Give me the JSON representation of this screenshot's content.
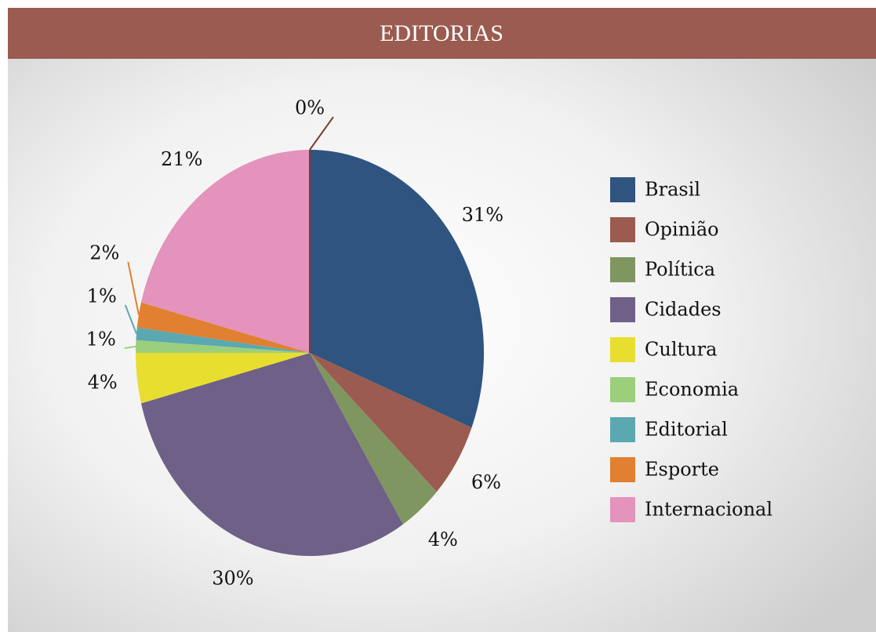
{
  "chart_data": {
    "type": "pie",
    "title": "EDITORIAS",
    "categories": [
      "Brasil",
      "Opinião",
      "Política",
      "Cidades",
      "Cultura",
      "Economia",
      "Editorial",
      "Esporte",
      "Internacional",
      null
    ],
    "values": [
      31,
      6,
      4,
      30,
      4,
      1,
      1,
      2,
      21,
      0
    ],
    "value_labels": [
      "31%",
      "6%",
      "4%",
      "30%",
      "4%",
      "1%",
      "1%",
      "2%",
      "21%",
      "0%"
    ],
    "colors": [
      "#2f5480",
      "#9b5b50",
      "#809660",
      "#6f6087",
      "#e8de30",
      "#9ccf7c",
      "#5ba8b0",
      "#e08030",
      "#e393bc",
      "#7a3a30"
    ],
    "legend": "right"
  }
}
